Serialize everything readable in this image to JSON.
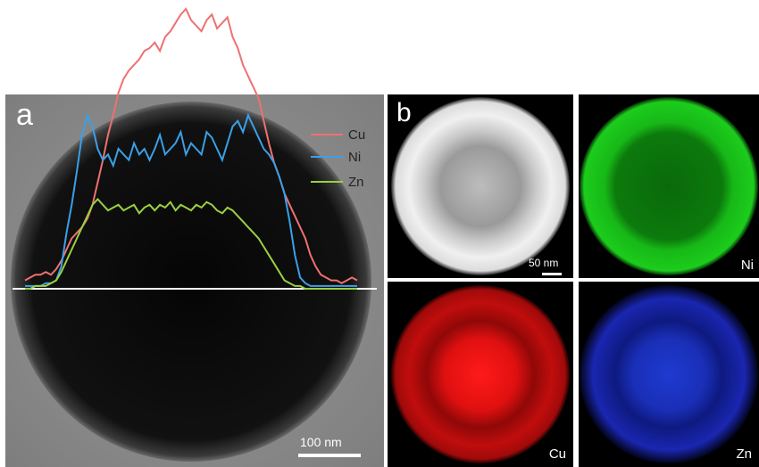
{
  "panel_a": {
    "label": "a",
    "scale_bar": "100 nm",
    "legend": [
      {
        "name": "Cu",
        "color": "#f07070"
      },
      {
        "name": "Ni",
        "color": "#3aa0e8"
      },
      {
        "name": "Zn",
        "color": "#9ad040"
      }
    ]
  },
  "panel_b": {
    "label": "b",
    "scale_bar": "50 nm",
    "maps": [
      {
        "element": "",
        "label": "",
        "color": "#e6e6e6"
      },
      {
        "element": "Ni",
        "label": "Ni",
        "color": "#18c818"
      },
      {
        "element": "Cu",
        "label": "Cu",
        "color": "#e81818"
      },
      {
        "element": "Zn",
        "label": "Zn",
        "color": "#2030e0"
      }
    ]
  },
  "chart_data": {
    "type": "line",
    "series": [
      {
        "name": "Cu",
        "values": [
          3,
          4,
          5,
          5,
          6,
          5,
          7,
          10,
          14,
          18,
          20,
          22,
          25,
          30,
          38,
          46,
          55,
          62,
          70,
          75,
          78,
          80,
          82,
          85,
          86,
          88,
          85,
          90,
          92,
          95,
          98,
          100,
          96,
          94,
          92,
          96,
          98,
          93,
          95,
          97,
          90,
          86,
          80,
          76,
          72,
          68,
          60,
          52,
          45,
          40,
          34,
          30,
          26,
          22,
          18,
          12,
          8,
          5,
          4,
          3,
          3,
          2,
          3,
          4,
          3
        ]
      },
      {
        "name": "Ni",
        "values": [
          1,
          1,
          1,
          1,
          2,
          2,
          3,
          8,
          20,
          30,
          42,
          55,
          62,
          58,
          50,
          46,
          48,
          44,
          50,
          48,
          46,
          52,
          48,
          50,
          46,
          50,
          55,
          48,
          50,
          52,
          56,
          48,
          52,
          50,
          48,
          56,
          54,
          50,
          46,
          52,
          58,
          60,
          56,
          62,
          58,
          54,
          50,
          48,
          45,
          40,
          34,
          24,
          12,
          4,
          2,
          1,
          1,
          1,
          1,
          1,
          1,
          1,
          1,
          1,
          1
        ]
      },
      {
        "name": "Zn",
        "values": [
          0,
          0,
          1,
          1,
          1,
          2,
          3,
          6,
          10,
          14,
          18,
          22,
          26,
          30,
          32,
          30,
          28,
          29,
          30,
          28,
          29,
          30,
          27,
          29,
          30,
          28,
          30,
          29,
          31,
          28,
          30,
          29,
          28,
          30,
          29,
          31,
          30,
          28,
          27,
          29,
          28,
          26,
          24,
          22,
          20,
          18,
          15,
          12,
          9,
          6,
          3,
          2,
          1,
          1,
          0,
          0,
          0,
          0,
          0,
          0,
          0,
          0,
          0,
          0,
          0
        ]
      }
    ]
  }
}
